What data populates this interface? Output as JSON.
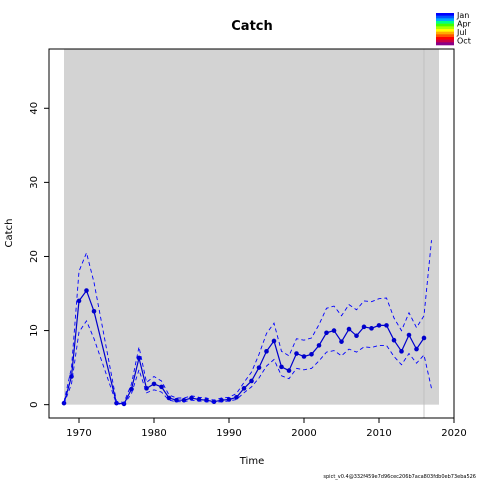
{
  "chart_data": {
    "type": "line",
    "title": "Catch",
    "xlabel": "Time",
    "ylabel": "Catch",
    "xlim": [
      1966,
      2020
    ],
    "ylim": [
      -1.8,
      48
    ],
    "xticks": [
      1970,
      1980,
      1990,
      2000,
      2010,
      2020
    ],
    "yticks": [
      0,
      10,
      20,
      30,
      40
    ],
    "grid": false,
    "shaded_region": {
      "x_start": 1968,
      "x_end": 2018,
      "y_start": 0,
      "y_end": 48,
      "color": "#d3d3d3"
    },
    "vertical_line_x": 2016,
    "x": [
      1968,
      1969,
      1970,
      1971,
      1972,
      1975,
      1976,
      1977,
      1978,
      1979,
      1980,
      1981,
      1982,
      1983,
      1984,
      1985,
      1986,
      1987,
      1988,
      1989,
      1990,
      1991,
      1992,
      1993,
      1994,
      1995,
      1996,
      1997,
      1998,
      1999,
      2000,
      2001,
      2002,
      2003,
      2004,
      2005,
      2006,
      2007,
      2008,
      2009,
      2010,
      2011,
      2012,
      2013,
      2014,
      2015,
      2016
    ],
    "series": [
      {
        "values": [
          0.2,
          3.8,
          14.0,
          15.4,
          12.6,
          0.2,
          0.1,
          2.1,
          6.3,
          2.2,
          2.8,
          2.4,
          0.9,
          0.6,
          0.6,
          0.9,
          0.7,
          0.6,
          0.4,
          0.6,
          0.7,
          1.0,
          2.2,
          3.2,
          5.0,
          7.2,
          8.6,
          5.1,
          4.6,
          6.9,
          6.5,
          6.8,
          8.0,
          9.7,
          10.0,
          8.5,
          10.2,
          9.3,
          10.5,
          10.3,
          10.7,
          10.7,
          8.7,
          7.2,
          9.4,
          7.5,
          9.0
        ],
        "color": "#0000cc",
        "style": "solid-with-points"
      },
      {
        "x": [
          1968,
          1969,
          1970,
          1971,
          1972,
          1975,
          1976,
          1977,
          1978,
          1979,
          1980,
          1981,
          1982,
          1983,
          1984,
          1985,
          1986,
          1987,
          1988,
          1989,
          1990,
          1991,
          1992,
          1993,
          1994,
          1995,
          1996,
          1997,
          1998,
          1999,
          2000,
          2001,
          2002,
          2003,
          2004,
          2005,
          2006,
          2007,
          2008,
          2009,
          2010,
          2011,
          2012,
          2013,
          2014,
          2015,
          2016,
          2017
        ],
        "values": [
          0.4,
          5.0,
          18.0,
          20.5,
          16.5,
          0.4,
          0.3,
          2.8,
          7.8,
          3.0,
          3.8,
          3.2,
          1.3,
          0.9,
          0.9,
          1.2,
          1.0,
          0.9,
          0.6,
          0.9,
          1.0,
          1.5,
          3.0,
          4.4,
          6.8,
          9.6,
          11.0,
          7.2,
          6.6,
          8.9,
          8.7,
          9.0,
          10.8,
          13.0,
          13.3,
          12.0,
          13.5,
          12.8,
          14.0,
          13.9,
          14.3,
          14.4,
          11.7,
          10.0,
          12.4,
          10.4,
          12.0,
          22.2
        ],
        "color": "#0000ff",
        "style": "dashed"
      },
      {
        "x": [
          1968,
          1969,
          1970,
          1971,
          1972,
          1975,
          1976,
          1977,
          1978,
          1979,
          1980,
          1981,
          1982,
          1983,
          1984,
          1985,
          1986,
          1987,
          1988,
          1989,
          1990,
          1991,
          1992,
          1993,
          1994,
          1995,
          1996,
          1997,
          1998,
          1999,
          2000,
          2001,
          2002,
          2003,
          2004,
          2005,
          2006,
          2007,
          2008,
          2009,
          2010,
          2011,
          2012,
          2013,
          2014,
          2015,
          2016,
          2017
        ],
        "values": [
          0.1,
          2.8,
          9.8,
          11.3,
          8.9,
          0.1,
          0.05,
          1.5,
          4.7,
          1.6,
          2.0,
          1.7,
          0.6,
          0.4,
          0.4,
          0.6,
          0.5,
          0.4,
          0.3,
          0.4,
          0.5,
          0.7,
          1.6,
          2.4,
          3.6,
          5.2,
          6.1,
          3.9,
          3.5,
          4.9,
          4.7,
          4.9,
          5.9,
          7.1,
          7.3,
          6.6,
          7.5,
          7.1,
          7.8,
          7.7,
          8.0,
          8.0,
          6.5,
          5.4,
          6.9,
          5.6,
          6.7,
          2.2
        ],
        "color": "#0000ff",
        "style": "dashed"
      }
    ],
    "legend": {
      "placement": "top-right",
      "entries": [
        "Jan",
        "Apr",
        "Jul",
        "Oct"
      ],
      "colors": [
        "#0000ff",
        "#0055ff",
        "#00aaff",
        "#00ff88",
        "#44ff00",
        "#aaff00",
        "#ffff00",
        "#ffaa00",
        "#ff5500",
        "#ff0000",
        "#cc0044",
        "#880088"
      ]
    },
    "footnote": "spict_v0.4@332f459e7d96cec206b7aca803fdb0eb73eba526"
  }
}
